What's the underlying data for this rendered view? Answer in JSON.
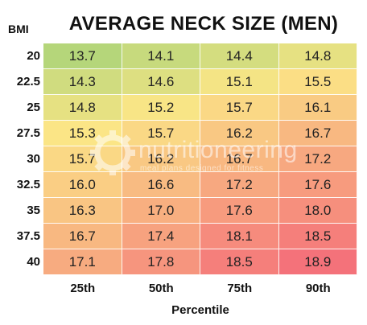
{
  "chart_data": {
    "type": "heatmap",
    "title": "AVERAGE NECK SIZE (MEN)",
    "ylabel": "BMI",
    "xlabel": "Percentile",
    "rows": [
      "20",
      "22.5",
      "25",
      "27.5",
      "30",
      "32.5",
      "35",
      "37.5",
      "40"
    ],
    "columns": [
      "25th",
      "50th",
      "75th",
      "90th"
    ],
    "values": [
      [
        13.7,
        14.1,
        14.4,
        14.8
      ],
      [
        14.3,
        14.6,
        15.1,
        15.5
      ],
      [
        14.8,
        15.2,
        15.7,
        16.1
      ],
      [
        15.3,
        15.7,
        16.2,
        16.7
      ],
      [
        15.7,
        16.2,
        16.7,
        17.2
      ],
      [
        16.0,
        16.6,
        17.2,
        17.6
      ],
      [
        16.3,
        17.0,
        17.6,
        18.0
      ],
      [
        16.7,
        17.4,
        18.1,
        18.5
      ],
      [
        17.1,
        17.8,
        18.5,
        18.9
      ]
    ],
    "color_scale": {
      "low": "#b5d67a",
      "mid": "#fbe686",
      "high": "#f4727a"
    }
  },
  "watermark": {
    "name": "nutritioneering",
    "tagline": "meal plans designed for fitness"
  }
}
